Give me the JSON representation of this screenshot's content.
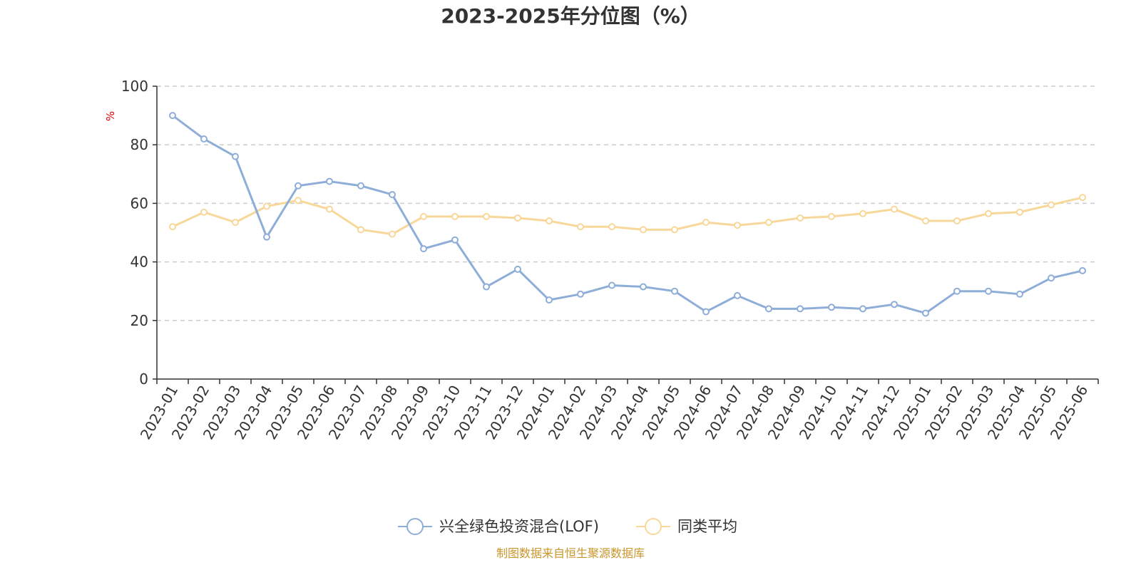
{
  "chart_data": {
    "type": "line",
    "title": "2023-2025年分位图（%）",
    "ylabel": "%",
    "ylim": [
      0,
      100
    ],
    "yticks": [
      0,
      20,
      40,
      60,
      80,
      100
    ],
    "grid": true,
    "legend_position": "bottom",
    "categories": [
      "2023-01",
      "2023-02",
      "2023-03",
      "2023-04",
      "2023-05",
      "2023-06",
      "2023-07",
      "2023-08",
      "2023-09",
      "2023-10",
      "2023-11",
      "2023-12",
      "2024-01",
      "2024-02",
      "2024-03",
      "2024-04",
      "2024-05",
      "2024-06",
      "2024-07",
      "2024-08",
      "2024-09",
      "2024-10",
      "2024-11",
      "2024-12",
      "2025-01",
      "2025-02",
      "2025-03",
      "2025-04",
      "2025-05",
      "2025-06"
    ],
    "series": [
      {
        "name": "兴全绿色投资混合(LOF)",
        "color": "#8eaed8",
        "values": [
          90,
          82,
          76,
          48.5,
          66,
          67.5,
          66,
          63,
          44.5,
          47.5,
          31.5,
          37.5,
          27,
          29,
          32,
          31.5,
          30,
          23,
          28.5,
          24,
          24,
          24.5,
          24,
          25.5,
          22.5,
          30,
          30,
          29,
          34.5,
          37
        ]
      },
      {
        "name": "同类平均",
        "color": "#f8d89a",
        "values": [
          52,
          57,
          53.5,
          59,
          61,
          58,
          51,
          49.5,
          55.5,
          55.5,
          55.5,
          55,
          54,
          52,
          52,
          51,
          51,
          53.5,
          52.5,
          53.5,
          55,
          55.5,
          56.5,
          58,
          54,
          54,
          56.5,
          57,
          59.5,
          62
        ]
      }
    ]
  },
  "source_text": "制图数据来自恒生聚源数据库"
}
